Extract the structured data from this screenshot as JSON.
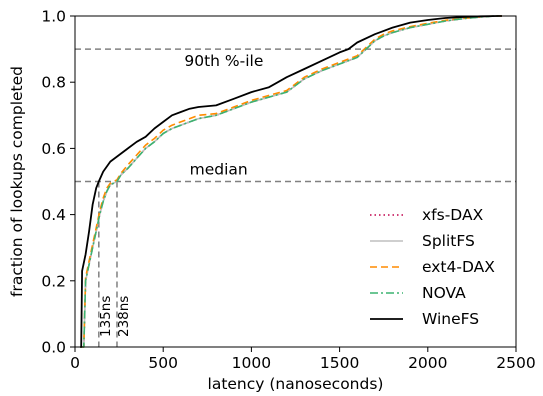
{
  "chart_data": {
    "type": "line",
    "xlabel": "latency (nanoseconds)",
    "ylabel": "fraction of lookups completed",
    "xlim": [
      0,
      2500
    ],
    "ylim": [
      0.0,
      1.0
    ],
    "xticks": [
      0,
      500,
      1000,
      1500,
      2000,
      2500
    ],
    "yticks": [
      0.0,
      0.2,
      0.4,
      0.6,
      0.8,
      1.0
    ],
    "xtick_labels": [
      "0",
      "500",
      "1000",
      "1500",
      "2000",
      "2500"
    ],
    "ytick_labels": [
      "0.0",
      "0.2",
      "0.4",
      "0.6",
      "0.8",
      "1.0"
    ],
    "grid": false,
    "legend_position": "bottom-right",
    "annotations": {
      "p90_label": "90th %-ile",
      "p90_value": 0.9,
      "median_label": "median",
      "median_value": 0.5,
      "marker_wine_label": "135ns",
      "marker_wine_x": 135,
      "marker_others_label": "238ns",
      "marker_others_x": 238
    },
    "series": [
      {
        "name": "xfs-DAX",
        "color": "#c0004c",
        "dash": "dotted",
        "x": [
          30,
          50,
          60,
          80,
          100,
          120,
          140,
          160,
          180,
          200,
          238,
          260,
          300,
          350,
          400,
          450,
          500,
          550,
          600,
          650,
          700,
          800,
          900,
          1000,
          1100,
          1200,
          1250,
          1300,
          1400,
          1500,
          1600,
          1650,
          1700,
          1750,
          1800,
          1900,
          2000,
          2100,
          2200,
          2300,
          2380,
          2420
        ],
        "y": [
          0.0,
          0.0,
          0.2,
          0.25,
          0.3,
          0.35,
          0.4,
          0.44,
          0.47,
          0.49,
          0.5,
          0.52,
          0.54,
          0.57,
          0.6,
          0.62,
          0.645,
          0.66,
          0.67,
          0.68,
          0.69,
          0.7,
          0.72,
          0.74,
          0.755,
          0.77,
          0.79,
          0.81,
          0.835,
          0.855,
          0.875,
          0.9,
          0.925,
          0.94,
          0.95,
          0.965,
          0.975,
          0.985,
          0.992,
          0.997,
          1.0,
          1.0
        ]
      },
      {
        "name": "SplitFS",
        "color": "#bfbfbf",
        "dash": "solid",
        "x": [
          30,
          50,
          60,
          80,
          100,
          120,
          140,
          160,
          180,
          200,
          238,
          260,
          300,
          350,
          400,
          450,
          500,
          550,
          600,
          650,
          700,
          800,
          900,
          1000,
          1100,
          1200,
          1250,
          1300,
          1400,
          1500,
          1600,
          1650,
          1700,
          1750,
          1800,
          1900,
          2000,
          2100,
          2200,
          2300,
          2380,
          2420
        ],
        "y": [
          0.0,
          0.0,
          0.2,
          0.25,
          0.3,
          0.35,
          0.4,
          0.44,
          0.47,
          0.49,
          0.5,
          0.52,
          0.54,
          0.57,
          0.6,
          0.62,
          0.645,
          0.66,
          0.67,
          0.68,
          0.69,
          0.7,
          0.72,
          0.74,
          0.755,
          0.77,
          0.79,
          0.81,
          0.835,
          0.855,
          0.875,
          0.9,
          0.925,
          0.94,
          0.95,
          0.965,
          0.975,
          0.985,
          0.992,
          0.997,
          1.0,
          1.0
        ]
      },
      {
        "name": "ext4-DAX",
        "color": "#ff8c00",
        "dash": "dashed",
        "x": [
          30,
          50,
          60,
          80,
          100,
          120,
          140,
          160,
          180,
          200,
          238,
          260,
          300,
          350,
          400,
          450,
          500,
          550,
          600,
          650,
          700,
          800,
          900,
          1000,
          1100,
          1200,
          1250,
          1300,
          1400,
          1500,
          1600,
          1650,
          1700,
          1750,
          1800,
          1900,
          2000,
          2100,
          2200,
          2300,
          2380,
          2420
        ],
        "y": [
          0.0,
          0.0,
          0.21,
          0.26,
          0.31,
          0.36,
          0.41,
          0.45,
          0.48,
          0.495,
          0.505,
          0.525,
          0.55,
          0.58,
          0.61,
          0.63,
          0.655,
          0.67,
          0.68,
          0.69,
          0.7,
          0.705,
          0.725,
          0.745,
          0.76,
          0.775,
          0.795,
          0.815,
          0.84,
          0.86,
          0.88,
          0.905,
          0.93,
          0.945,
          0.955,
          0.968,
          0.978,
          0.987,
          0.993,
          0.998,
          1.0,
          1.0
        ]
      },
      {
        "name": "NOVA",
        "color": "#3cb371",
        "dash": "dashdot",
        "x": [
          30,
          50,
          60,
          80,
          100,
          120,
          140,
          160,
          180,
          200,
          238,
          260,
          300,
          350,
          400,
          450,
          500,
          550,
          600,
          650,
          700,
          800,
          900,
          1000,
          1100,
          1200,
          1250,
          1300,
          1400,
          1500,
          1600,
          1650,
          1700,
          1750,
          1800,
          1900,
          2000,
          2100,
          2200,
          2300,
          2380,
          2420
        ],
        "y": [
          0.0,
          0.0,
          0.2,
          0.25,
          0.3,
          0.35,
          0.4,
          0.44,
          0.47,
          0.49,
          0.5,
          0.52,
          0.54,
          0.57,
          0.6,
          0.62,
          0.645,
          0.66,
          0.67,
          0.68,
          0.69,
          0.7,
          0.72,
          0.74,
          0.755,
          0.77,
          0.79,
          0.81,
          0.835,
          0.855,
          0.875,
          0.9,
          0.925,
          0.94,
          0.95,
          0.965,
          0.975,
          0.985,
          0.992,
          0.997,
          1.0,
          1.0
        ]
      },
      {
        "name": "WineFS",
        "color": "#000000",
        "dash": "solid",
        "x": [
          30,
          35,
          40,
          60,
          80,
          100,
          120,
          135,
          160,
          200,
          250,
          300,
          350,
          400,
          450,
          500,
          550,
          600,
          650,
          700,
          800,
          900,
          1000,
          1100,
          1150,
          1200,
          1300,
          1400,
          1500,
          1550,
          1600,
          1700,
          1800,
          1900,
          2000,
          2100,
          2200,
          2300,
          2400,
          2420
        ],
        "y": [
          0.0,
          0.0,
          0.23,
          0.28,
          0.35,
          0.43,
          0.48,
          0.5,
          0.53,
          0.56,
          0.58,
          0.6,
          0.62,
          0.635,
          0.66,
          0.68,
          0.7,
          0.71,
          0.72,
          0.725,
          0.73,
          0.75,
          0.77,
          0.785,
          0.8,
          0.815,
          0.84,
          0.865,
          0.89,
          0.9,
          0.92,
          0.945,
          0.965,
          0.98,
          0.988,
          0.994,
          0.997,
          0.999,
          1.0,
          1.0
        ]
      }
    ]
  }
}
